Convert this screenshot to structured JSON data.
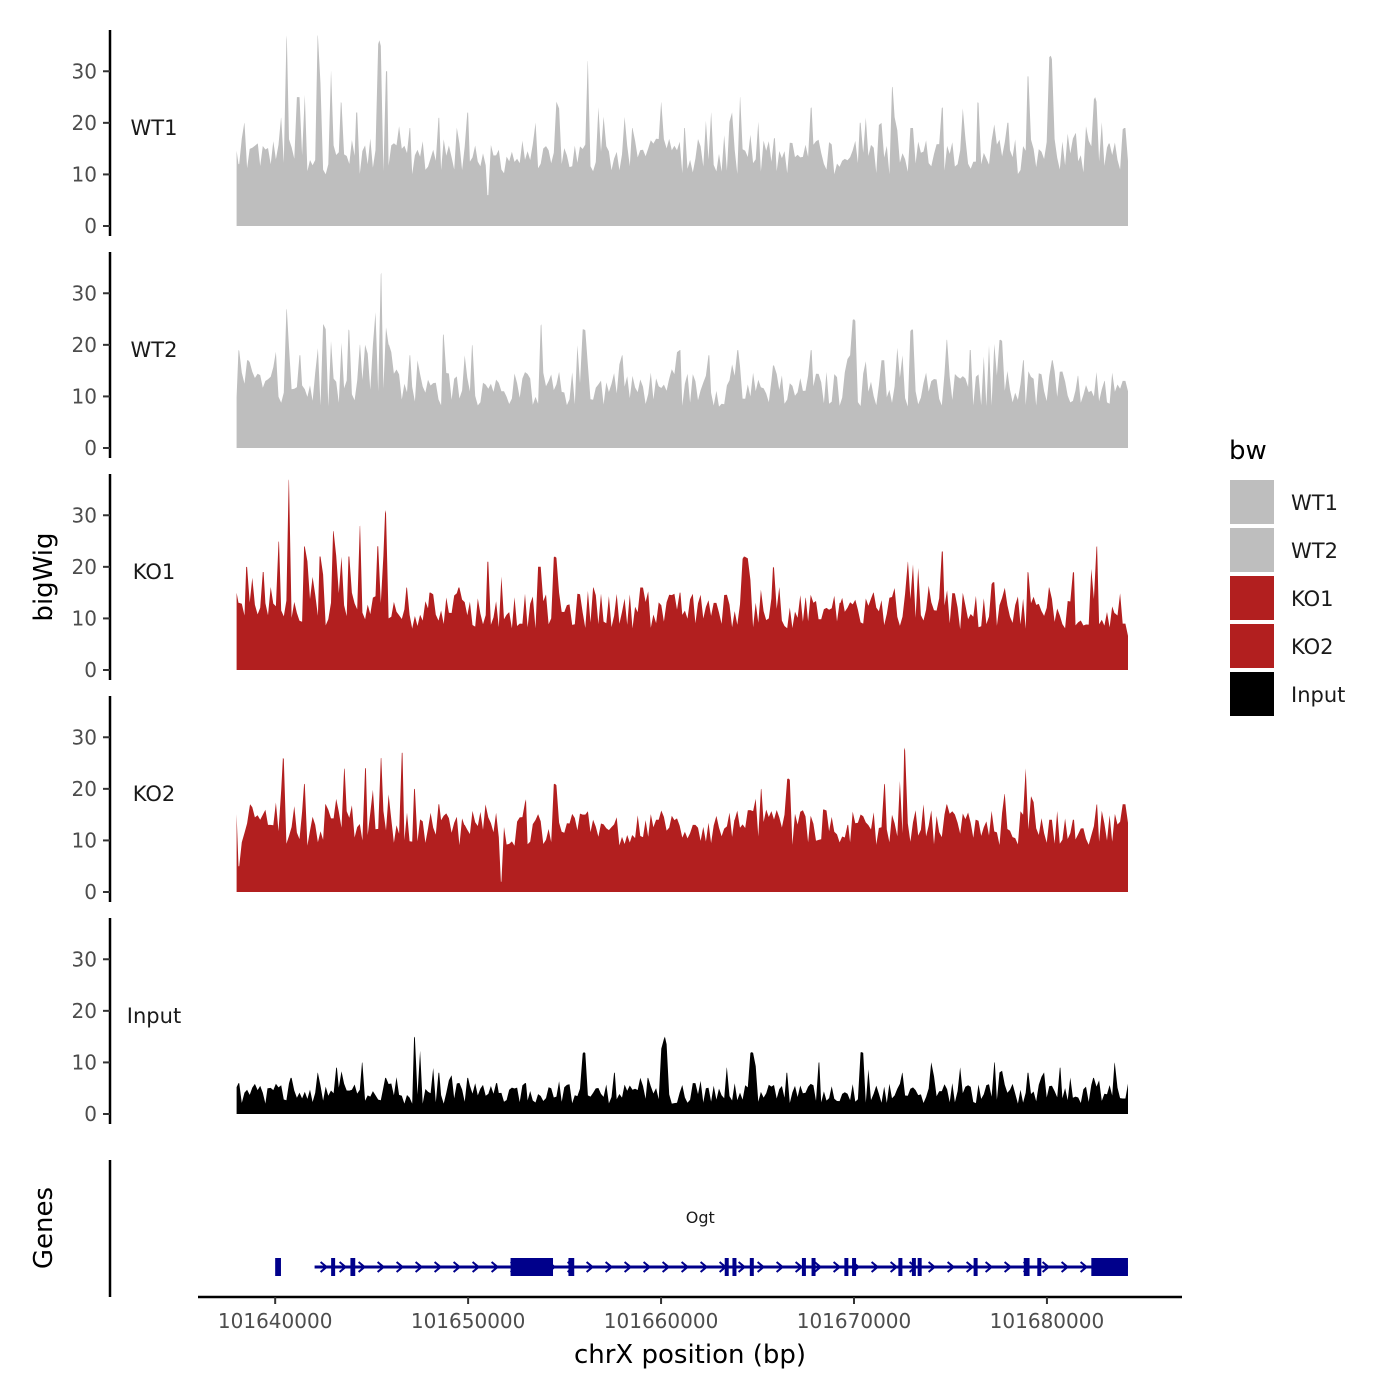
{
  "chart_data": {
    "type": "area",
    "y_axis_title": "bigWig",
    "genes_axis_title": "Genes",
    "xlabel": "chrX position (bp)",
    "xlim": [
      101636000,
      101687000
    ],
    "x_ticks": [
      101640000,
      101650000,
      101660000,
      101670000,
      101680000
    ],
    "x_tick_labels": [
      "101640000",
      "101650000",
      "101660000",
      "101670000",
      "101680000"
    ],
    "ylim": [
      0,
      38
    ],
    "y_ticks": [
      0,
      10,
      20,
      30
    ],
    "y_tick_labels": [
      "0",
      "10",
      "20",
      "30"
    ],
    "region": [
      101638000,
      101684200
    ],
    "legend": {
      "title": "bw",
      "position": "right",
      "entries": [
        {
          "label": "WT1",
          "color": "#bebebe"
        },
        {
          "label": "WT2",
          "color": "#bebebe"
        },
        {
          "label": "KO1",
          "color": "#b21f1f"
        },
        {
          "label": "KO2",
          "color": "#b21f1f"
        },
        {
          "label": "Input",
          "color": "#000000"
        }
      ]
    },
    "series": [
      {
        "name": "WT1",
        "color": "#bebebe",
        "peaks": [
          [
            101638100,
            12
          ],
          [
            101638400,
            20
          ],
          [
            101639100,
            16
          ],
          [
            101640300,
            21
          ],
          [
            101640600,
            37
          ],
          [
            101641200,
            25
          ],
          [
            101642200,
            37
          ],
          [
            101642900,
            30
          ],
          [
            101643400,
            24
          ],
          [
            101644200,
            22
          ],
          [
            101645400,
            36
          ],
          [
            101645800,
            30
          ],
          [
            101647000,
            19
          ],
          [
            101648500,
            21
          ],
          [
            101650000,
            22
          ],
          [
            101651000,
            6
          ],
          [
            101653500,
            20
          ],
          [
            101656200,
            32
          ],
          [
            101658500,
            19
          ],
          [
            101660000,
            24
          ],
          [
            101661200,
            19
          ],
          [
            101662600,
            22
          ],
          [
            101664100,
            25
          ],
          [
            101665900,
            17
          ],
          [
            101667800,
            23
          ],
          [
            101670300,
            20
          ],
          [
            101672000,
            27
          ],
          [
            101673000,
            19
          ],
          [
            101674600,
            23
          ],
          [
            101676400,
            24
          ],
          [
            101678000,
            20
          ],
          [
            101679000,
            29
          ],
          [
            101680200,
            33
          ],
          [
            101681500,
            18
          ],
          [
            101682500,
            25
          ],
          [
            101683200,
            16
          ],
          [
            101684000,
            19
          ]
        ],
        "baseline": [
          10,
          17
        ]
      },
      {
        "name": "WT2",
        "color": "#bebebe",
        "peaks": [
          [
            101638100,
            19
          ],
          [
            101638600,
            17
          ],
          [
            101639500,
            13
          ],
          [
            101640600,
            27
          ],
          [
            101641300,
            18
          ],
          [
            101642500,
            24
          ],
          [
            101643800,
            23
          ],
          [
            101644400,
            20
          ],
          [
            101645500,
            34
          ],
          [
            101645900,
            20
          ],
          [
            101647000,
            18
          ],
          [
            101648700,
            22
          ],
          [
            101650200,
            20
          ],
          [
            101651800,
            11
          ],
          [
            101653800,
            24
          ],
          [
            101656000,
            23
          ],
          [
            101658000,
            18
          ],
          [
            101661000,
            19
          ],
          [
            101662500,
            18
          ],
          [
            101664000,
            19
          ],
          [
            101665800,
            16
          ],
          [
            101667800,
            19
          ],
          [
            101670000,
            25
          ],
          [
            101671500,
            17
          ],
          [
            101673000,
            23
          ],
          [
            101674800,
            21
          ],
          [
            101676000,
            19
          ],
          [
            101677600,
            21
          ],
          [
            101678800,
            17
          ],
          [
            101680300,
            17
          ],
          [
            101681600,
            14
          ],
          [
            101683000,
            13
          ],
          [
            101684000,
            13
          ]
        ],
        "baseline": [
          8,
          15
        ]
      },
      {
        "name": "KO1",
        "color": "#b21f1f",
        "peaks": [
          [
            101638100,
            13
          ],
          [
            101638500,
            20
          ],
          [
            101639400,
            19
          ],
          [
            101640200,
            25
          ],
          [
            101640700,
            37
          ],
          [
            101641500,
            24
          ],
          [
            101642300,
            22
          ],
          [
            101643000,
            27
          ],
          [
            101643800,
            22
          ],
          [
            101644400,
            28
          ],
          [
            101645300,
            24
          ],
          [
            101645700,
            31
          ],
          [
            101646800,
            16
          ],
          [
            101648000,
            15
          ],
          [
            101649500,
            16
          ],
          [
            101651000,
            21
          ],
          [
            101653700,
            20
          ],
          [
            101654500,
            22
          ],
          [
            101656500,
            16
          ],
          [
            101659000,
            16
          ],
          [
            101661000,
            15
          ],
          [
            101662800,
            13
          ],
          [
            101664300,
            22
          ],
          [
            101665800,
            20
          ],
          [
            101667500,
            14
          ],
          [
            101669300,
            13
          ],
          [
            101671000,
            15
          ],
          [
            101672800,
            21
          ],
          [
            101674600,
            23
          ],
          [
            101675500,
            8
          ],
          [
            101677200,
            17
          ],
          [
            101679000,
            19
          ],
          [
            101680100,
            16
          ],
          [
            101681400,
            19
          ],
          [
            101682600,
            24
          ],
          [
            101683500,
            11
          ],
          [
            101684000,
            9
          ]
        ],
        "baseline": [
          8,
          15
        ]
      },
      {
        "name": "KO2",
        "color": "#b21f1f",
        "peaks": [
          [
            101638100,
            5
          ],
          [
            101638700,
            17
          ],
          [
            101639700,
            13
          ],
          [
            101640400,
            26
          ],
          [
            101641500,
            21
          ],
          [
            101642600,
            17
          ],
          [
            101643600,
            24
          ],
          [
            101644700,
            24
          ],
          [
            101645500,
            26
          ],
          [
            101646600,
            27
          ],
          [
            101647200,
            20
          ],
          [
            101648500,
            17
          ],
          [
            101649800,
            13
          ],
          [
            101650900,
            17
          ],
          [
            101651700,
            2
          ],
          [
            101653000,
            18
          ],
          [
            101654500,
            21
          ],
          [
            101656000,
            15
          ],
          [
            101658500,
            11
          ],
          [
            101659800,
            14
          ],
          [
            101661700,
            13
          ],
          [
            101663800,
            14
          ],
          [
            101665200,
            20
          ],
          [
            101666600,
            22
          ],
          [
            101668400,
            16
          ],
          [
            101669700,
            13
          ],
          [
            101671600,
            21
          ],
          [
            101672600,
            28
          ],
          [
            101673600,
            17
          ],
          [
            101674800,
            17
          ],
          [
            101676300,
            14
          ],
          [
            101677800,
            19
          ],
          [
            101678900,
            24
          ],
          [
            101680200,
            14
          ],
          [
            101681400,
            14
          ],
          [
            101682600,
            17
          ],
          [
            101684000,
            17
          ]
        ],
        "baseline": [
          9,
          16
        ]
      },
      {
        "name": "Input",
        "color": "#000000",
        "peaks": [
          [
            101638100,
            6
          ],
          [
            101639600,
            5
          ],
          [
            101640800,
            7
          ],
          [
            101642200,
            8
          ],
          [
            101643200,
            9
          ],
          [
            101644500,
            10
          ],
          [
            101645700,
            7
          ],
          [
            101647200,
            15
          ],
          [
            101648500,
            8
          ],
          [
            101650000,
            7
          ],
          [
            101651500,
            6
          ],
          [
            101653000,
            6
          ],
          [
            101654300,
            5
          ],
          [
            101656000,
            12
          ],
          [
            101657600,
            8
          ],
          [
            101659300,
            7
          ],
          [
            101660200,
            15
          ],
          [
            101661700,
            6
          ],
          [
            101663400,
            9
          ],
          [
            101664700,
            12
          ],
          [
            101666500,
            8
          ],
          [
            101668200,
            10
          ],
          [
            101670400,
            12
          ],
          [
            101672500,
            8
          ],
          [
            101674000,
            10
          ],
          [
            101675500,
            9
          ],
          [
            101677300,
            10
          ],
          [
            101679000,
            8
          ],
          [
            101680700,
            9
          ],
          [
            101682400,
            7
          ],
          [
            101683500,
            10
          ],
          [
            101684000,
            3
          ]
        ],
        "baseline": [
          2,
          6
        ]
      }
    ],
    "genes": [
      {
        "name": "Ogt",
        "start": 101638000,
        "end": 101684200,
        "strand": "+",
        "color": "#00008b",
        "exons": [
          [
            101640000,
            101640300
          ],
          [
            101642900,
            101643100
          ],
          [
            101643900,
            101644150
          ],
          [
            101652200,
            101654400
          ],
          [
            101655200,
            101655500
          ],
          [
            101663300,
            101663450
          ],
          [
            101663700,
            101663900
          ],
          [
            101664600,
            101664750
          ],
          [
            101667300,
            101667500
          ],
          [
            101667800,
            101668000
          ],
          [
            101669500,
            101669650
          ],
          [
            101669900,
            101670050
          ],
          [
            101672300,
            101672450
          ],
          [
            101673000,
            101673150
          ],
          [
            101673300,
            101673450
          ],
          [
            101676200,
            101676350
          ],
          [
            101678800,
            101679100
          ],
          [
            101679500,
            101679650
          ],
          [
            101682300,
            101684200
          ]
        ]
      }
    ]
  }
}
